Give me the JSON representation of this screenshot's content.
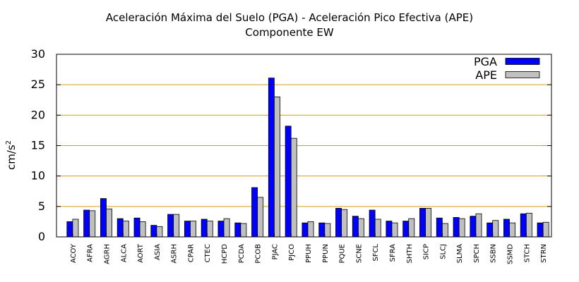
{
  "chart_data": {
    "type": "bar",
    "title": "Aceleración Máxima del Suelo (PGA) -  Aceleración Pico Efectiva (APE)",
    "subtitle": "Componente EW",
    "xlabel": "",
    "ylabel": "cm/s",
    "ylabel_sup": "2",
    "ylim": [
      0,
      30
    ],
    "yticks": [
      "0",
      "5",
      "10",
      "15",
      "20",
      "25",
      "30"
    ],
    "grid": true,
    "legend_position": "top-right",
    "categories": [
      "ACOY",
      "AFRA",
      "AGRH",
      "ALCA",
      "AORT",
      "ASIA",
      "ASRH",
      "CPAR",
      "CTEC",
      "HCPD",
      "PCDA",
      "PCOB",
      "PJAC",
      "PJCO",
      "PPUH",
      "PPUN",
      "PQUE",
      "SCNE",
      "SFCL",
      "SFRA",
      "SHTH",
      "SICP",
      "SLCJ",
      "SLMA",
      "SPCH",
      "SSBN",
      "SSMD",
      "STCH",
      "STRN"
    ],
    "series": [
      {
        "name": "PGA",
        "color": "#0000ff",
        "values": [
          2.5,
          4.4,
          6.3,
          3.0,
          3.1,
          1.9,
          3.7,
          2.6,
          2.9,
          2.6,
          2.3,
          8.1,
          26.1,
          18.2,
          2.3,
          2.3,
          4.7,
          3.4,
          4.4,
          2.6,
          2.6,
          4.7,
          3.1,
          3.2,
          3.4,
          2.3,
          2.9,
          3.8,
          2.3
        ]
      },
      {
        "name": "APE",
        "color": "#c0c0c0",
        "values": [
          2.9,
          4.3,
          4.6,
          2.6,
          2.5,
          1.7,
          3.7,
          2.6,
          2.6,
          3.0,
          2.2,
          6.5,
          23.0,
          16.2,
          2.5,
          2.2,
          4.5,
          3.0,
          2.9,
          2.3,
          3.0,
          4.7,
          2.2,
          3.0,
          3.8,
          2.7,
          2.3,
          3.9,
          2.4
        ]
      }
    ],
    "colors": {
      "gridline": "#d4a017",
      "frame": "#000000"
    }
  }
}
